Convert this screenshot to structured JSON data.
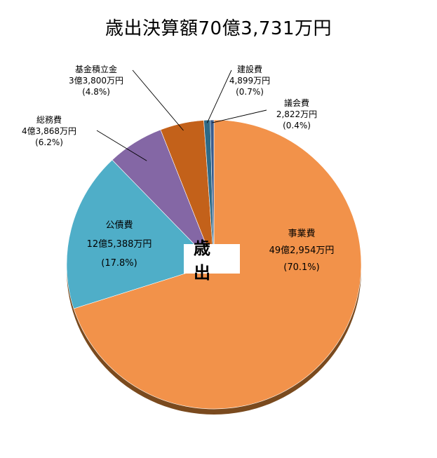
{
  "chart_data": {
    "type": "pie",
    "title": "歳出決算額70億3,731万円",
    "center_label": "歳 出",
    "unit": "万円",
    "slices": [
      {
        "name": "事業費",
        "amount_label": "49億2,954万円",
        "value": 492954,
        "percent_label": "(70.1%)",
        "percent": 70.1,
        "color": "#F2924A"
      },
      {
        "name": "公債費",
        "amount_label": "12億5,388万円",
        "value": 125388,
        "percent_label": "(17.8%)",
        "percent": 17.8,
        "color": "#4FAEC8"
      },
      {
        "name": "総務費",
        "amount_label": "4億3,868万円",
        "value": 43868,
        "percent_label": "(6.2%)",
        "percent": 6.2,
        "color": "#8467A5"
      },
      {
        "name": "基金積立金",
        "amount_label": "3億3,800万円",
        "value": 33800,
        "percent_label": "(4.8%)",
        "percent": 4.8,
        "color": "#C3611A"
      },
      {
        "name": "建設費",
        "amount_label": "4,899万円",
        "value": 4899,
        "percent_label": "(0.7%)",
        "percent": 0.7,
        "color": "#2E6A86"
      },
      {
        "name": "議会費",
        "amount_label": "2,822万円",
        "value": 2822,
        "percent_label": "(0.4%)",
        "percent": 0.4,
        "color": "#3A5C8E"
      }
    ]
  }
}
